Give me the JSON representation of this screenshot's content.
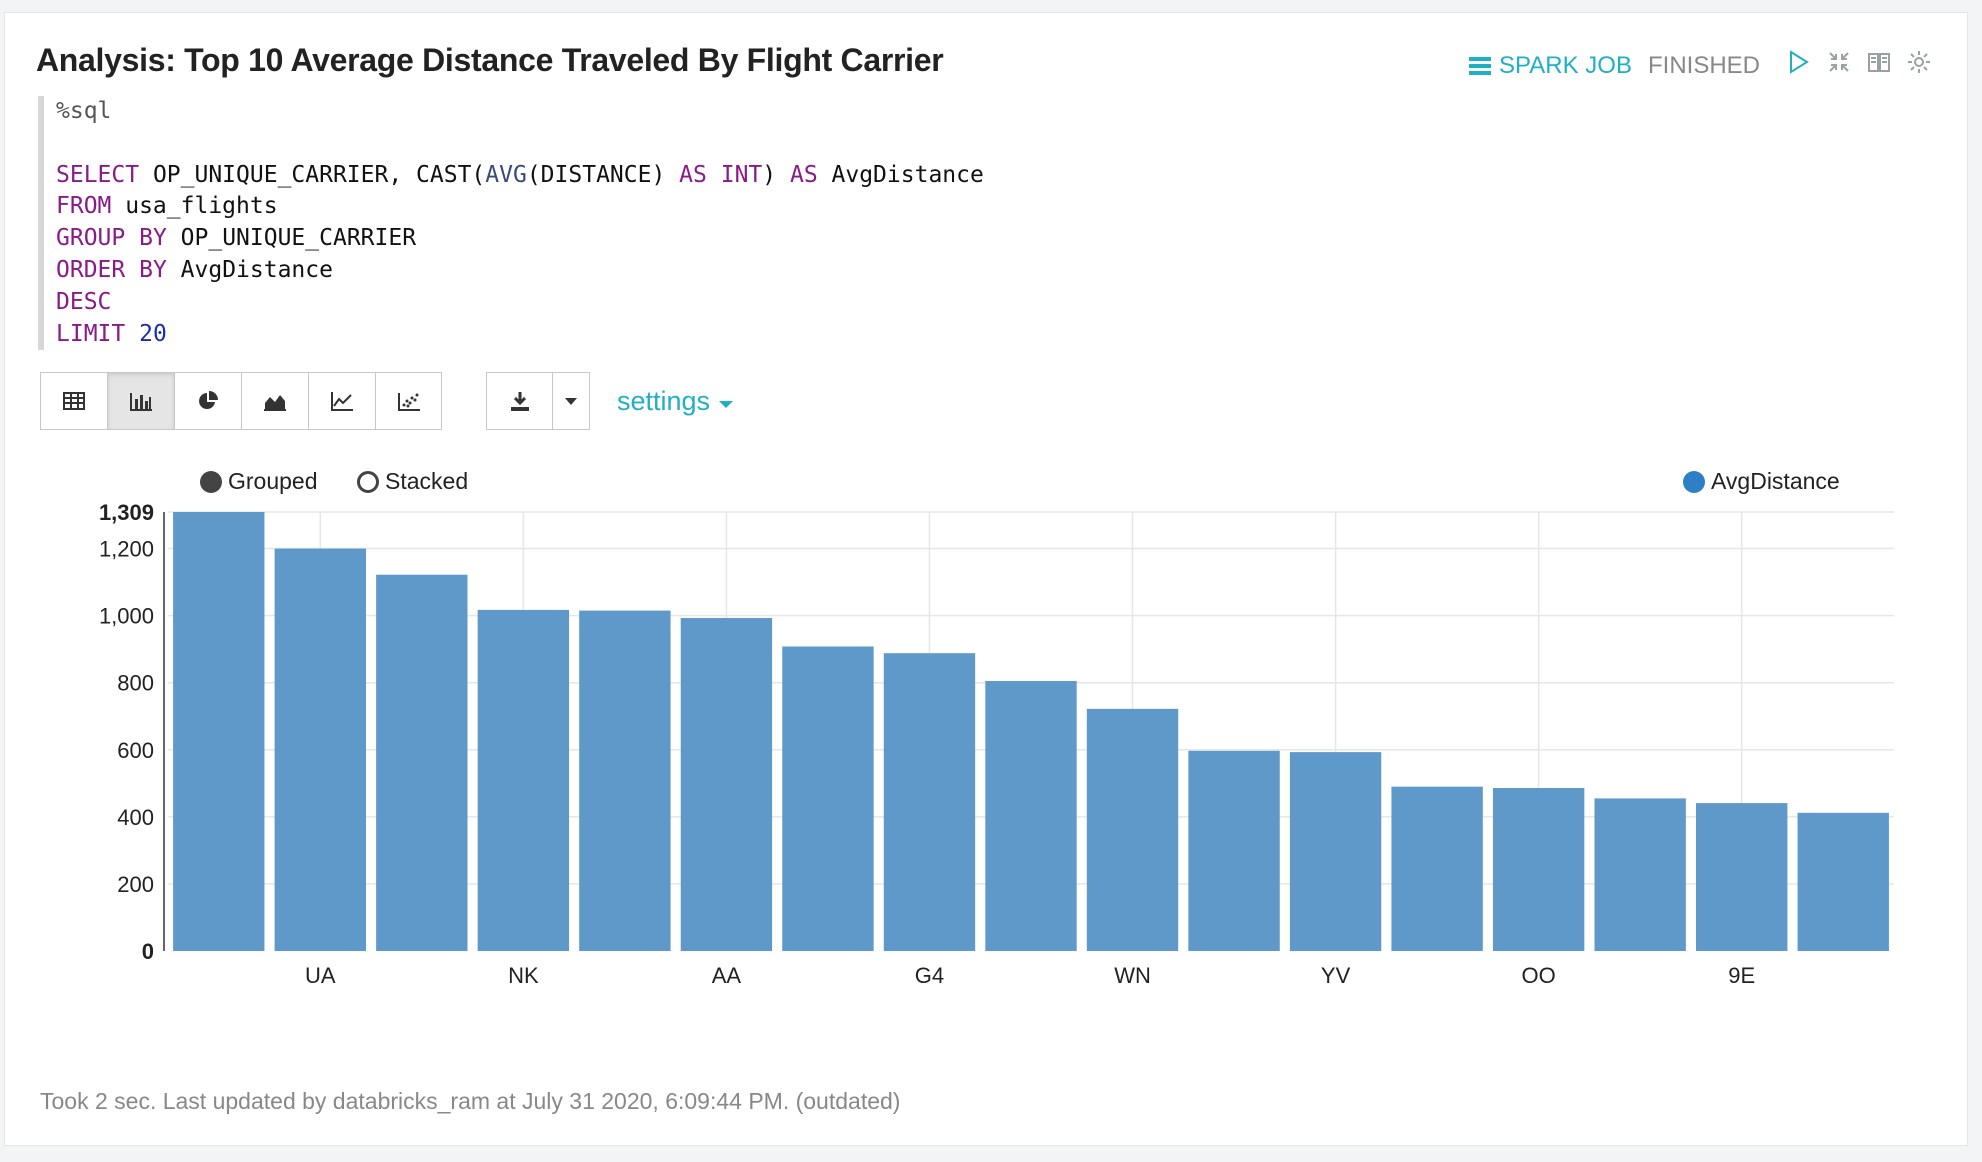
{
  "cell": {
    "title": "Analysis: Top 10 Average Distance Traveled By Flight Carrier",
    "status": {
      "job_label": "SPARK JOB",
      "state": "FINISHED"
    },
    "footer": "Took 2 sec. Last updated by databricks_ram at July 31 2020, 6:09:44 PM. (outdated)"
  },
  "code": {
    "magic": "%sql",
    "lines": [
      "SELECT OP_UNIQUE_CARRIER, CAST(AVG(DISTANCE) AS INT) AS AvgDistance",
      "FROM usa_flights",
      "GROUP BY OP_UNIQUE_CARRIER",
      "ORDER BY AvgDistance",
      "DESC",
      "LIMIT 20"
    ]
  },
  "toolbar": {
    "view_buttons": [
      "table-icon",
      "bar-chart-icon",
      "pie-chart-icon",
      "area-chart-icon",
      "line-chart-icon",
      "scatter-chart-icon"
    ],
    "active_view": "bar-chart-icon",
    "settings_label": "settings"
  },
  "chart_options": {
    "grouped_label": "Grouped",
    "stacked_label": "Stacked",
    "selected": "Grouped"
  },
  "chart_data": {
    "type": "bar",
    "categories": [
      "",
      "UA",
      "",
      "NK",
      "",
      "AA",
      "",
      "G4",
      "",
      "WN",
      "",
      "YV",
      "",
      "OO",
      "",
      "9E",
      ""
    ],
    "series": [
      {
        "name": "AvgDistance",
        "color": "#5b97c9",
        "values": [
          1309,
          1200,
          1122,
          1017,
          1015,
          993,
          908,
          888,
          805,
          722,
          597,
          593,
          490,
          486,
          455,
          441,
          412
        ]
      }
    ],
    "y_ticks": [
      "0",
      "200",
      "400",
      "600",
      "800",
      "1,000",
      "1,200",
      "1,309"
    ],
    "ylim": [
      0,
      1309
    ],
    "grid": true,
    "legend_position": "top-right"
  }
}
